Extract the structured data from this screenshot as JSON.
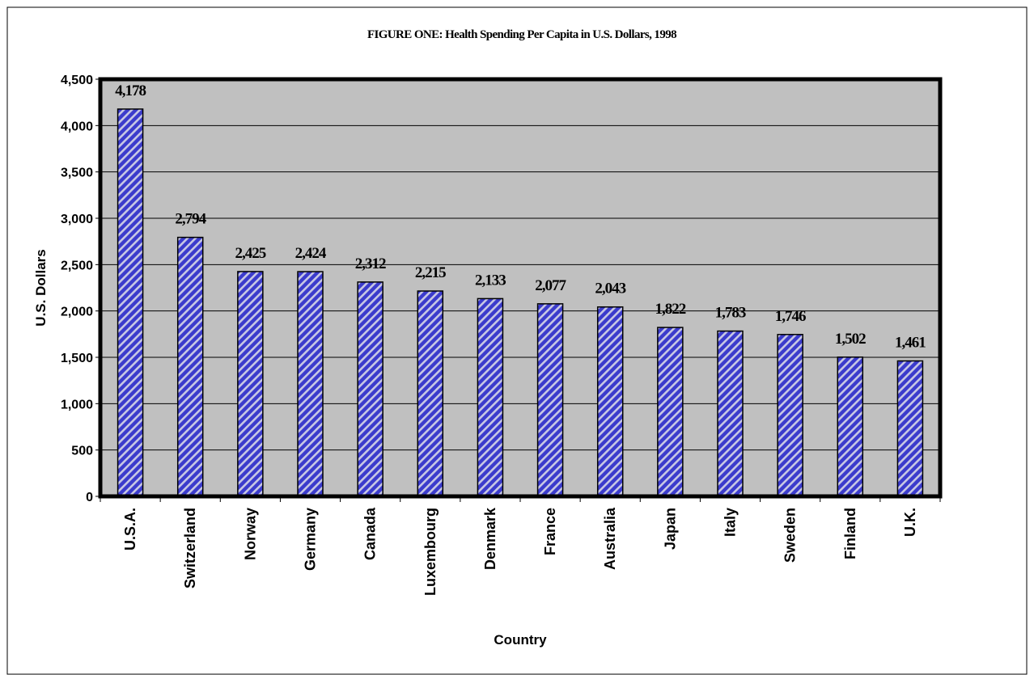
{
  "chart_data": {
    "type": "bar",
    "title": "FIGURE ONE: Health Spending Per Capita in U.S. Dollars, 1998",
    "xlabel": "Country",
    "ylabel": "U.S. Dollars",
    "categories": [
      "U.S.A.",
      "Switzerland",
      "Norway",
      "Germany",
      "Canada",
      "Luxembourg",
      "Denmark",
      "France",
      "Australia",
      "Japan",
      "Italy",
      "Sweden",
      "Finland",
      "U.K."
    ],
    "values": [
      4178,
      2794,
      2425,
      2424,
      2312,
      2215,
      2133,
      2077,
      2043,
      1822,
      1783,
      1746,
      1502,
      1461
    ],
    "data_labels": [
      "4,178",
      "2,794",
      "2,425",
      "2,424",
      "2,312",
      "2,215",
      "2,133",
      "2,077",
      "2,043",
      "1,822",
      "1,783",
      "1,746",
      "1,502",
      "1,461"
    ],
    "ylim": [
      0,
      4500
    ],
    "yticks": [
      0,
      500,
      1000,
      1500,
      2000,
      2500,
      3000,
      3500,
      4000,
      4500
    ],
    "ytick_labels": [
      "0",
      "500",
      "1,000",
      "1,500",
      "2,000",
      "2,500",
      "3,000",
      "3,500",
      "4,000",
      "4,500"
    ],
    "grid": true,
    "legend": "none",
    "colors": {
      "bar_fill": "#3b3bcc",
      "bar_stripe": "#c8c8e4",
      "plot_background": "#c0c0c0",
      "gridline": "#000000",
      "frame": "#000000"
    }
  }
}
